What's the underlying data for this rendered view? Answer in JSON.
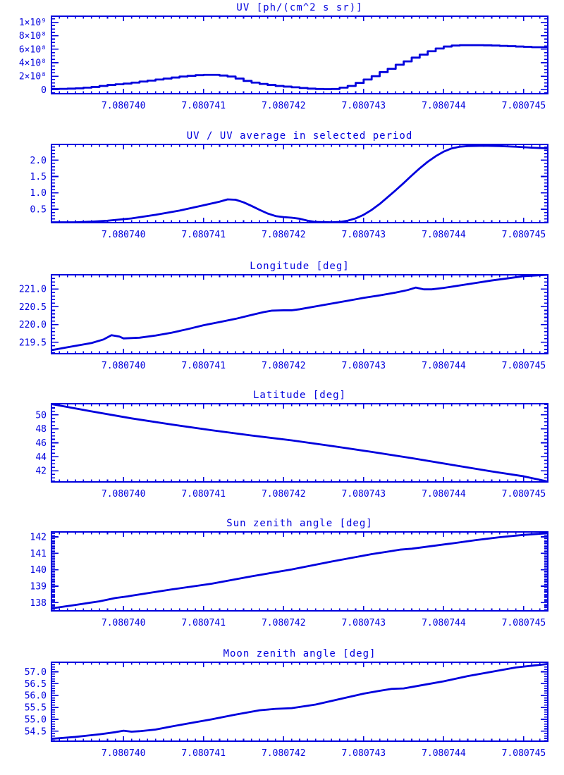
{
  "colors": {
    "line": "#0000dd",
    "text": "#0000dd",
    "frame": "#0000dd",
    "background": "#ffffff"
  },
  "chart_data": [
    {
      "id": "uv",
      "type": "step",
      "title": "UV [ph/(cm^2 s sr)]",
      "xlim": [
        7.0807391,
        7.0807453
      ],
      "ylim": [
        -60000000.0,
        1090000000.0
      ],
      "xticks": {
        "values": [
          7.08074,
          7.080741,
          7.080742,
          7.080743,
          7.080744,
          7.080745
        ],
        "labels": [
          "7.080740",
          "7.080741",
          "7.080742",
          "7.080743",
          "7.080744",
          "7.080745"
        ]
      },
      "yticks": {
        "values": [
          0,
          200000000.0,
          400000000.0,
          600000000.0,
          800000000.0,
          1000000000.0
        ],
        "labels": [
          "0",
          "2×10⁸",
          "4×10⁸",
          "6×10⁸",
          "8×10⁸",
          "1×10⁹"
        ]
      },
      "x_minor_divisions": 10,
      "y_minor_divisions": 4,
      "x_start": 7.080739,
      "x_step": 1e-07,
      "y": [
        10000000.0,
        10000000.0,
        12000000.0,
        15000000.0,
        20000000.0,
        30000000.0,
        40000000.0,
        55000000.0,
        70000000.0,
        80000000.0,
        90000000.0,
        105000000.0,
        120000000.0,
        135000000.0,
        150000000.0,
        165000000.0,
        180000000.0,
        195000000.0,
        205000000.0,
        215000000.0,
        220000000.0,
        220000000.0,
        210000000.0,
        195000000.0,
        165000000.0,
        130000000.0,
        105000000.0,
        85000000.0,
        70000000.0,
        55000000.0,
        45000000.0,
        35000000.0,
        25000000.0,
        15000000.0,
        10000000.0,
        8000000.0,
        10000000.0,
        30000000.0,
        55000000.0,
        100000000.0,
        150000000.0,
        200000000.0,
        260000000.0,
        310000000.0,
        370000000.0,
        420000000.0,
        475000000.0,
        520000000.0,
        570000000.0,
        610000000.0,
        640000000.0,
        655000000.0,
        660000000.0,
        660000000.0,
        660000000.0,
        658000000.0,
        655000000.0,
        650000000.0,
        645000000.0,
        640000000.0,
        635000000.0,
        630000000.0
      ]
    },
    {
      "id": "uv-ratio",
      "type": "line",
      "title": "UV / UV average in selected period",
      "xlim": [
        7.0807391,
        7.0807453
      ],
      "ylim": [
        0.09,
        2.48
      ],
      "xticks": {
        "values": [
          7.08074,
          7.080741,
          7.080742,
          7.080743,
          7.080744,
          7.080745
        ],
        "labels": [
          "7.080740",
          "7.080741",
          "7.080742",
          "7.080743",
          "7.080744",
          "7.080745"
        ]
      },
      "yticks": {
        "values": [
          0.5,
          1.0,
          1.5,
          2.0
        ],
        "labels": [
          "0.5",
          "1.0",
          "1.5",
          "2.0"
        ]
      },
      "x_minor_divisions": 10,
      "y_minor_divisions": 5,
      "points": [
        [
          7.0807391,
          0.1
        ],
        [
          7.0807394,
          0.1
        ],
        [
          7.0807396,
          0.12
        ],
        [
          7.0807398,
          0.15
        ],
        [
          7.0807401,
          0.22
        ],
        [
          7.0807404,
          0.33
        ],
        [
          7.0807407,
          0.46
        ],
        [
          7.080741,
          0.62
        ],
        [
          7.0807412,
          0.73
        ],
        [
          7.0807413,
          0.8
        ],
        [
          7.0807414,
          0.79
        ],
        [
          7.0807415,
          0.71
        ],
        [
          7.0807416,
          0.6
        ],
        [
          7.0807417,
          0.48
        ],
        [
          7.0807418,
          0.37
        ],
        [
          7.0807419,
          0.29
        ],
        [
          7.080742,
          0.26
        ],
        [
          7.0807421,
          0.24
        ],
        [
          7.0807422,
          0.21
        ],
        [
          7.0807423,
          0.15
        ],
        [
          7.0807424,
          0.11
        ],
        [
          7.0807426,
          0.1
        ],
        [
          7.0807427,
          0.11
        ],
        [
          7.0807428,
          0.15
        ],
        [
          7.0807429,
          0.22
        ],
        [
          7.080743,
          0.33
        ],
        [
          7.0807431,
          0.48
        ],
        [
          7.0807432,
          0.66
        ],
        [
          7.0807433,
          0.87
        ],
        [
          7.0807434,
          1.08
        ],
        [
          7.0807435,
          1.3
        ],
        [
          7.0807436,
          1.53
        ],
        [
          7.0807437,
          1.75
        ],
        [
          7.0807438,
          1.95
        ],
        [
          7.0807439,
          2.12
        ],
        [
          7.080744,
          2.26
        ],
        [
          7.0807441,
          2.36
        ],
        [
          7.0807442,
          2.41
        ],
        [
          7.0807443,
          2.43
        ],
        [
          7.0807445,
          2.44
        ],
        [
          7.0807447,
          2.43
        ],
        [
          7.0807449,
          2.41
        ],
        [
          7.0807451,
          2.38
        ],
        [
          7.0807453,
          2.36
        ]
      ]
    },
    {
      "id": "longitude",
      "type": "line",
      "title": "Longitude [deg]",
      "xlim": [
        7.0807391,
        7.0807453
      ],
      "ylim": [
        219.18,
        221.4
      ],
      "xticks": {
        "values": [
          7.08074,
          7.080741,
          7.080742,
          7.080743,
          7.080744,
          7.080745
        ],
        "labels": [
          "7.080740",
          "7.080741",
          "7.080742",
          "7.080743",
          "7.080744",
          "7.080745"
        ]
      },
      "yticks": {
        "values": [
          219.5,
          220.0,
          220.5,
          221.0
        ],
        "labels": [
          "219.5",
          "220.0",
          "220.5",
          "221.0"
        ]
      },
      "x_minor_divisions": 10,
      "y_minor_divisions": 5,
      "points": [
        [
          7.0807391,
          219.28
        ],
        [
          7.0807393,
          219.36
        ],
        [
          7.0807395,
          219.44
        ],
        [
          7.0807396,
          219.48
        ],
        [
          7.08073975,
          219.58
        ],
        [
          7.08073985,
          219.7
        ],
        [
          7.08073995,
          219.66
        ],
        [
          7.08074,
          219.61
        ],
        [
          7.0807402,
          219.63
        ],
        [
          7.0807404,
          219.69
        ],
        [
          7.0807406,
          219.77
        ],
        [
          7.0807408,
          219.87
        ],
        [
          7.080741,
          219.98
        ],
        [
          7.0807412,
          220.07
        ],
        [
          7.0807414,
          220.16
        ],
        [
          7.0807416,
          220.27
        ],
        [
          7.08074175,
          220.35
        ],
        [
          7.08074185,
          220.39
        ],
        [
          7.080742,
          220.4
        ],
        [
          7.0807421,
          220.4
        ],
        [
          7.0807422,
          220.43
        ],
        [
          7.0807424,
          220.51
        ],
        [
          7.0807426,
          220.59
        ],
        [
          7.0807428,
          220.67
        ],
        [
          7.080743,
          220.75
        ],
        [
          7.0807432,
          220.82
        ],
        [
          7.0807434,
          220.9
        ],
        [
          7.08074355,
          220.97
        ],
        [
          7.08074365,
          221.04
        ],
        [
          7.08074375,
          220.99
        ],
        [
          7.08074385,
          220.99
        ],
        [
          7.080744,
          221.03
        ],
        [
          7.0807442,
          221.1
        ],
        [
          7.0807444,
          221.17
        ],
        [
          7.0807446,
          221.24
        ],
        [
          7.0807448,
          221.3
        ],
        [
          7.080745,
          221.36
        ],
        [
          7.0807453,
          221.4
        ]
      ]
    },
    {
      "id": "latitude",
      "type": "line",
      "title": "Latitude [deg]",
      "xlim": [
        7.0807391,
        7.0807453
      ],
      "ylim": [
        40.4,
        51.6
      ],
      "xticks": {
        "values": [
          7.08074,
          7.080741,
          7.080742,
          7.080743,
          7.080744,
          7.080745
        ],
        "labels": [
          "7.080740",
          "7.080741",
          "7.080742",
          "7.080743",
          "7.080744",
          "7.080745"
        ]
      },
      "yticks": {
        "values": [
          42,
          44,
          46,
          48,
          50
        ],
        "labels": [
          "42",
          "44",
          "46",
          "48",
          "50"
        ]
      },
      "x_minor_divisions": 10,
      "y_minor_divisions": 4,
      "points": [
        [
          7.0807391,
          51.55
        ],
        [
          7.0807396,
          50.5
        ],
        [
          7.0807401,
          49.5
        ],
        [
          7.0807406,
          48.62
        ],
        [
          7.0807411,
          47.8
        ],
        [
          7.0807416,
          47.05
        ],
        [
          7.0807421,
          46.35
        ],
        [
          7.0807426,
          45.55
        ],
        [
          7.0807431,
          44.7
        ],
        [
          7.0807436,
          43.8
        ],
        [
          7.0807441,
          42.85
        ],
        [
          7.0807446,
          41.9
        ],
        [
          7.080745,
          41.2
        ],
        [
          7.0807453,
          40.45
        ]
      ]
    },
    {
      "id": "sun-zenith",
      "type": "line",
      "title": "Sun zenith angle [deg]",
      "xlim": [
        7.0807391,
        7.0807453
      ],
      "ylim": [
        137.5,
        142.3
      ],
      "xticks": {
        "values": [
          7.08074,
          7.080741,
          7.080742,
          7.080743,
          7.080744,
          7.080745
        ],
        "labels": [
          "7.080740",
          "7.080741",
          "7.080742",
          "7.080743",
          "7.080744",
          "7.080745"
        ]
      },
      "yticks": {
        "values": [
          138,
          139,
          140,
          141,
          142
        ],
        "labels": [
          "138",
          "139",
          "140",
          "141",
          "142"
        ]
      },
      "x_minor_divisions": 10,
      "y_minor_divisions": 10,
      "points": [
        [
          7.0807391,
          137.65
        ],
        [
          7.0807394,
          137.86
        ],
        [
          7.0807397,
          138.08
        ],
        [
          7.0807399,
          138.28
        ],
        [
          7.08074005,
          138.38
        ],
        [
          7.0807401,
          138.42
        ],
        [
          7.0807406,
          138.8
        ],
        [
          7.0807411,
          139.15
        ],
        [
          7.0807416,
          139.6
        ],
        [
          7.0807421,
          140.02
        ],
        [
          7.0807426,
          140.5
        ],
        [
          7.0807431,
          140.95
        ],
        [
          7.0807433,
          141.1
        ],
        [
          7.08074345,
          141.22
        ],
        [
          7.0807436,
          141.28
        ],
        [
          7.0807441,
          141.6
        ],
        [
          7.0807444,
          141.8
        ],
        [
          7.0807447,
          141.98
        ],
        [
          7.080745,
          142.12
        ],
        [
          7.0807453,
          142.22
        ]
      ]
    },
    {
      "id": "moon-zenith",
      "type": "line",
      "title": "Moon zenith angle [deg]",
      "xlim": [
        7.0807391,
        7.0807453
      ],
      "ylim": [
        54.08,
        57.4
      ],
      "xticks": {
        "values": [
          7.08074,
          7.080741,
          7.080742,
          7.080743,
          7.080744,
          7.080745
        ],
        "labels": [
          "7.080740",
          "7.080741",
          "7.080742",
          "7.080743",
          "7.080744",
          "7.080745"
        ]
      },
      "yticks": {
        "values": [
          54.5,
          55.0,
          55.5,
          56.0,
          56.5,
          57.0
        ],
        "labels": [
          "54.5",
          "55.0",
          "55.5",
          "56.0",
          "56.5",
          "57.0"
        ]
      },
      "x_minor_divisions": 10,
      "y_minor_divisions": 5,
      "points": [
        [
          7.0807391,
          54.18
        ],
        [
          7.0807394,
          54.26
        ],
        [
          7.0807397,
          54.37
        ],
        [
          7.0807399,
          54.46
        ],
        [
          7.08074,
          54.52
        ],
        [
          7.0807401,
          54.48
        ],
        [
          7.0807402,
          54.5
        ],
        [
          7.0807404,
          54.57
        ],
        [
          7.0807406,
          54.7
        ],
        [
          7.0807409,
          54.88
        ],
        [
          7.0807411,
          55.0
        ],
        [
          7.0807414,
          55.2
        ],
        [
          7.0807417,
          55.38
        ],
        [
          7.0807419,
          55.44
        ],
        [
          7.0807421,
          55.47
        ],
        [
          7.0807424,
          55.62
        ],
        [
          7.0807427,
          55.85
        ],
        [
          7.080743,
          56.08
        ],
        [
          7.0807432,
          56.2
        ],
        [
          7.08074335,
          56.28
        ],
        [
          7.0807435,
          56.3
        ],
        [
          7.0807437,
          56.42
        ],
        [
          7.080744,
          56.6
        ],
        [
          7.0807443,
          56.82
        ],
        [
          7.0807446,
          57.0
        ],
        [
          7.0807449,
          57.18
        ],
        [
          7.0807453,
          57.33
        ]
      ]
    }
  ]
}
